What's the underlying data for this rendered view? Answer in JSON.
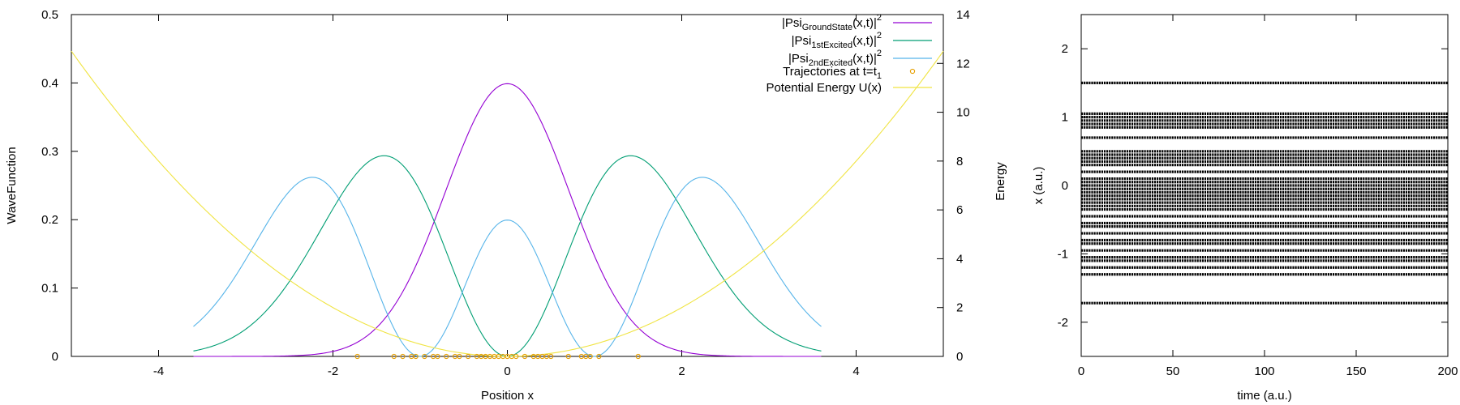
{
  "colors": {
    "ground": "#9400d3",
    "first": "#009e73",
    "second": "#56b4e9",
    "trajectories": "#e69f00",
    "potential": "#f0e442",
    "axis": "#000000"
  },
  "chart_data": [
    {
      "type": "line",
      "xlabel": "Position x",
      "ylabel": "WaveFunction",
      "y2label": "Energy",
      "xlim": [
        -5,
        5
      ],
      "ylim": [
        0,
        0.5
      ],
      "y2lim": [
        0,
        14
      ],
      "x_ticks": [
        "-4",
        "-2",
        "0",
        "2",
        "4"
      ],
      "y_ticks": [
        "0",
        "0.1",
        "0.2",
        "0.3",
        "0.4",
        "0.5"
      ],
      "y2_ticks": [
        "0",
        "2",
        "4",
        "6",
        "8",
        "10",
        "12",
        "14"
      ],
      "legend": {
        "placement": "top-right",
        "entries": [
          {
            "key": "ground",
            "pre": "|Psi",
            "sub": "GroundState",
            "post": "(x,t)|",
            "sup": "2",
            "marker": "line"
          },
          {
            "key": "first",
            "pre": "|Psi",
            "sub": "1stExcited",
            "post": "(x,t)|",
            "sup": "2",
            "marker": "line"
          },
          {
            "key": "second",
            "pre": "|Psi",
            "sub": "2ndExcited",
            "post": "(x,t)|",
            "sup": "2",
            "marker": "line"
          },
          {
            "key": "trajectories",
            "pre": "Trajectories at t=t",
            "sub": "1",
            "post": "",
            "sup": "",
            "marker": "point"
          },
          {
            "key": "potential",
            "pre": "Potential Energy U(x)",
            "sub": "",
            "post": "",
            "sup": "",
            "marker": "line"
          }
        ]
      },
      "series": [
        {
          "key": "ground",
          "axis": "y",
          "function": "exp(-x^2)/sqrt(2*pi)",
          "x_range": [
            -3.6,
            3.6
          ]
        },
        {
          "key": "first",
          "axis": "y",
          "function": "x^2*exp(-x^2/2)/sqrt(2*pi)",
          "x_range": [
            -3.6,
            3.6
          ]
        },
        {
          "key": "second",
          "axis": "y",
          "function": "(x^2-1)^2*exp(-x^2/2)/(2*sqrt(2*pi))",
          "x_range": [
            -3.6,
            3.6
          ]
        },
        {
          "key": "potential",
          "axis": "y2",
          "function": "x^2/2",
          "x_range": [
            -5,
            5
          ]
        }
      ],
      "trajectory_positions": [
        -1.72,
        -1.3,
        -1.2,
        -1.1,
        -1.05,
        -0.95,
        -0.85,
        -0.8,
        -0.7,
        -0.6,
        -0.55,
        -0.45,
        -0.35,
        -0.3,
        -0.25,
        -0.2,
        -0.15,
        -0.1,
        -0.05,
        0.0,
        0.05,
        0.1,
        0.2,
        0.3,
        0.35,
        0.4,
        0.45,
        0.5,
        0.7,
        0.85,
        0.9,
        0.95,
        1.05,
        1.5
      ]
    },
    {
      "type": "scatter",
      "xlabel": "time (a.u.)",
      "ylabel": "x (a.u.)",
      "xlim": [
        0,
        200
      ],
      "ylim": [
        -2.5,
        2.5
      ],
      "x_ticks": [
        "0",
        "50",
        "100",
        "150",
        "200"
      ],
      "y_ticks": [
        "-2",
        "-1",
        "0",
        "1",
        "2"
      ],
      "trajectory_levels": [
        1.5,
        1.05,
        1.0,
        0.95,
        0.9,
        0.85,
        0.7,
        0.5,
        0.45,
        0.4,
        0.35,
        0.3,
        0.2,
        0.1,
        0.05,
        0.0,
        -0.05,
        -0.1,
        -0.15,
        -0.2,
        -0.25,
        -0.3,
        -0.35,
        -0.45,
        -0.55,
        -0.6,
        -0.7,
        -0.8,
        -0.85,
        -0.95,
        -1.05,
        -1.1,
        -1.2,
        -1.3,
        -1.72
      ]
    }
  ]
}
